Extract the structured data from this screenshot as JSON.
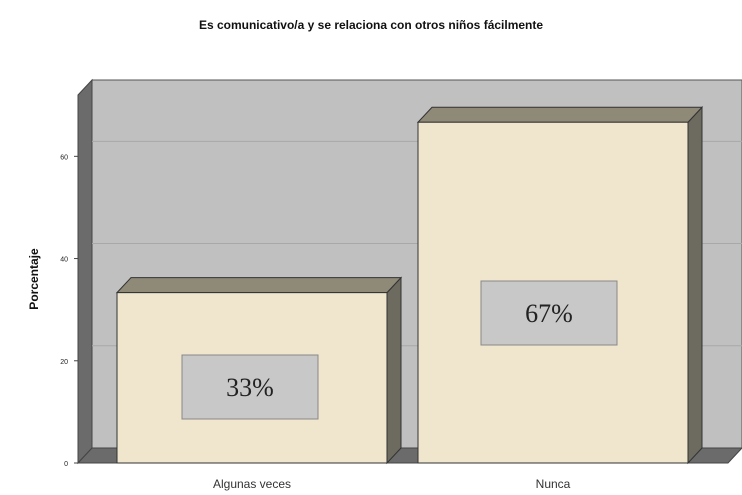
{
  "chart_data": {
    "type": "bar",
    "title": "Es comunicativo/a y se relaciona con otros niños fácilmente",
    "xlabel": "",
    "ylabel": "Porcentaje",
    "categories": [
      "Algunas veces",
      "Nunca"
    ],
    "values": [
      33.33,
      66.67
    ],
    "data_labels": [
      "33%",
      "67%"
    ],
    "ylim": [
      0,
      72
    ],
    "yticks": [
      "0",
      "20",
      "40",
      "60"
    ],
    "grid": true,
    "legend": "none",
    "colors": {
      "plot_background": "#c0c0c0",
      "bar_face": "#efe6cd",
      "bar_side": "#6d6a5f",
      "bar_top": "#8f8978",
      "label_box": "#c8c8c8"
    }
  }
}
